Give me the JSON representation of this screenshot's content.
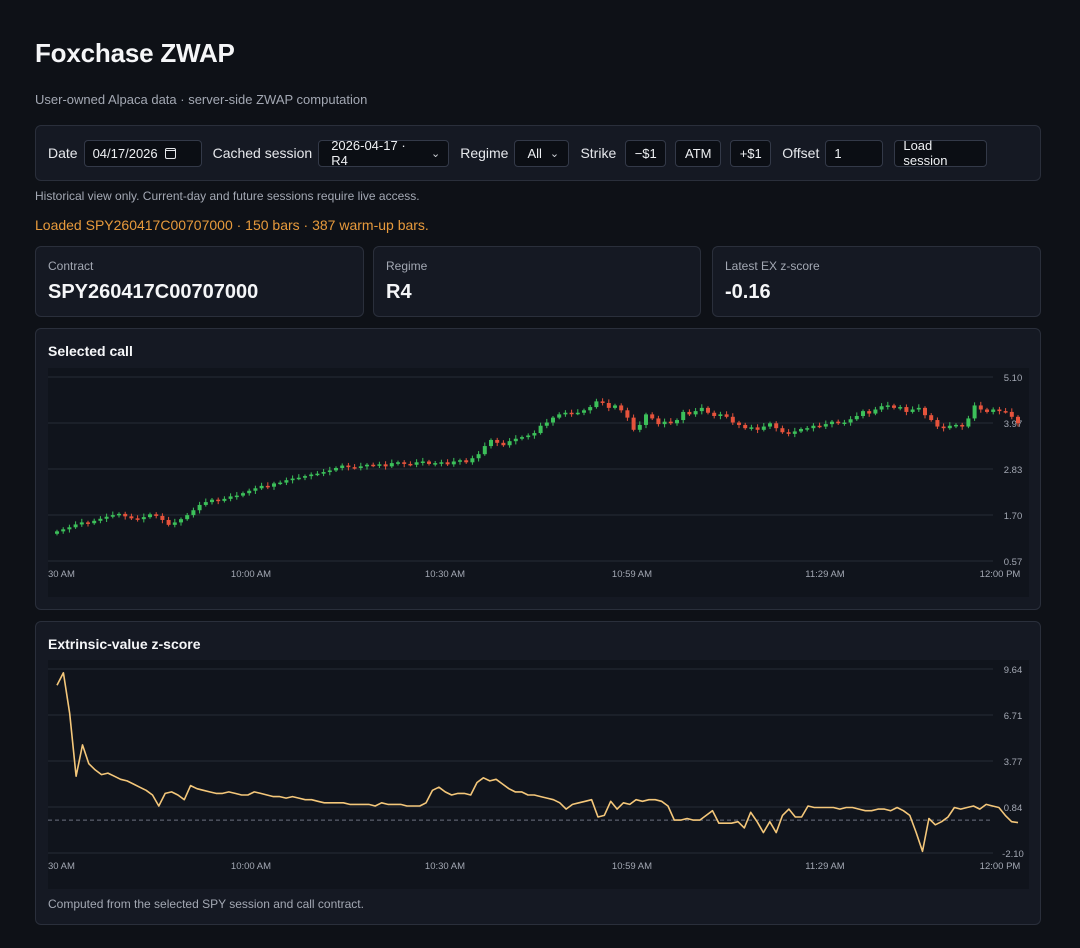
{
  "header": {
    "title": "Foxchase ZWAP",
    "subtitle": "User-owned Alpaca data · server-side ZWAP computation"
  },
  "toolbar": {
    "date_label": "Date",
    "date_value": "04/17/2026",
    "cached_label": "Cached session",
    "cached_value": "2026-04-17 · R4",
    "regime_label": "Regime",
    "regime_value": "All",
    "strike_label": "Strike",
    "strike_minus": "−$1",
    "strike_atm": "ATM",
    "strike_plus": "+$1",
    "offset_label": "Offset",
    "offset_value": "1",
    "load_button": "Load session"
  },
  "hint": "Historical view only. Current-day and future sessions require live access.",
  "status": "Loaded SPY260417C00707000 · 150 bars · 387 warm-up bars.",
  "cards": [
    {
      "label": "Contract",
      "value": "SPY260417C00707000"
    },
    {
      "label": "Regime",
      "value": "R4"
    },
    {
      "label": "Latest EX z-score",
      "value": "-0.16"
    }
  ],
  "colors": {
    "up": "#3cc05a",
    "down": "#e5533c",
    "line": "#f4c77a"
  },
  "chart_data": [
    {
      "type": "candlestick",
      "title": "Selected call",
      "x_ticks": [
        "30 AM",
        "10:00 AM",
        "10:30 AM",
        "10:59 AM",
        "11:29 AM",
        "12:00 PM"
      ],
      "y_ticks": [
        "5.10",
        "3.97",
        "2.83",
        "1.70",
        "0.57"
      ],
      "ylim": [
        0.57,
        5.1
      ],
      "bars": 150,
      "close": [
        1.3,
        1.35,
        1.4,
        1.47,
        1.52,
        1.5,
        1.56,
        1.61,
        1.66,
        1.7,
        1.73,
        1.67,
        1.62,
        1.6,
        1.65,
        1.72,
        1.68,
        1.58,
        1.46,
        1.52,
        1.6,
        1.7,
        1.82,
        1.95,
        2.02,
        2.08,
        2.05,
        2.1,
        2.16,
        2.18,
        2.24,
        2.3,
        2.36,
        2.42,
        2.4,
        2.48,
        2.5,
        2.56,
        2.6,
        2.62,
        2.66,
        2.7,
        2.72,
        2.76,
        2.8,
        2.86,
        2.92,
        2.88,
        2.86,
        2.9,
        2.94,
        2.92,
        2.95,
        2.9,
        2.98,
        3.0,
        2.96,
        2.94,
        3.0,
        3.02,
        2.96,
        2.98,
        3.0,
        2.95,
        3.02,
        3.05,
        3.0,
        3.1,
        3.2,
        3.4,
        3.55,
        3.48,
        3.42,
        3.52,
        3.58,
        3.62,
        3.66,
        3.72,
        3.9,
        3.98,
        4.1,
        4.18,
        4.22,
        4.2,
        4.22,
        4.28,
        4.36,
        4.5,
        4.46,
        4.34,
        4.4,
        4.28,
        4.1,
        3.8,
        3.92,
        4.18,
        4.08,
        3.94,
        4.0,
        3.96,
        4.04,
        4.24,
        4.18,
        4.26,
        4.34,
        4.22,
        4.14,
        4.18,
        4.12,
        3.98,
        3.92,
        3.84,
        3.86,
        3.8,
        3.88,
        3.96,
        3.84,
        3.74,
        3.7,
        3.76,
        3.82,
        3.84,
        3.9,
        3.88,
        3.94,
        4.0,
        3.96,
        3.98,
        4.06,
        4.14,
        4.26,
        4.2,
        4.3,
        4.38,
        4.4,
        4.34,
        4.36,
        4.24,
        4.3,
        4.34,
        4.16,
        4.04,
        3.88,
        3.84,
        3.9,
        3.92,
        3.88,
        4.08,
        4.4,
        4.3,
        4.24,
        4.3,
        4.26,
        4.24,
        4.12,
        3.96
      ]
    },
    {
      "type": "line",
      "title": "Extrinsic-value z-score",
      "x_ticks": [
        "30 AM",
        "10:00 AM",
        "10:30 AM",
        "10:59 AM",
        "11:29 AM",
        "12:00 PM"
      ],
      "y_ticks": [
        "9.64",
        "6.71",
        "3.77",
        "0.84",
        "-2.10"
      ],
      "ylim": [
        -2.1,
        9.64
      ],
      "baseline": 0,
      "values": [
        8.6,
        9.4,
        6.8,
        2.8,
        4.8,
        3.6,
        3.2,
        2.9,
        3.0,
        2.8,
        2.6,
        2.5,
        2.3,
        2.1,
        1.9,
        1.6,
        0.9,
        1.7,
        1.8,
        1.6,
        1.3,
        2.2,
        2.0,
        1.9,
        1.8,
        1.7,
        1.7,
        1.8,
        1.7,
        1.6,
        1.6,
        1.8,
        1.7,
        1.6,
        1.5,
        1.5,
        1.4,
        1.5,
        1.4,
        1.3,
        1.3,
        1.2,
        1.1,
        1.1,
        1.1,
        1.1,
        1.0,
        1.0,
        1.0,
        1.0,
        0.9,
        1.1,
        1.0,
        1.0,
        1.0,
        0.9,
        0.9,
        0.9,
        1.1,
        1.9,
        2.1,
        1.8,
        1.6,
        1.7,
        1.7,
        1.6,
        2.4,
        2.7,
        2.5,
        2.6,
        2.3,
        2.0,
        1.8,
        1.8,
        1.6,
        1.6,
        1.5,
        1.4,
        1.3,
        1.1,
        0.7,
        1.0,
        1.1,
        1.2,
        1.3,
        0.2,
        0.3,
        1.2,
        0.7,
        1.1,
        1.0,
        1.3,
        1.2,
        1.3,
        1.3,
        1.2,
        0.9,
        0.0,
        0.0,
        0.1,
        0.0,
        0.0,
        0.3,
        0.6,
        -0.2,
        -0.2,
        -0.2,
        -0.1,
        -0.5,
        0.5,
        -0.1,
        -0.8,
        -0.1,
        -0.8,
        0.3,
        0.7,
        0.2,
        0.2,
        0.9,
        0.8,
        0.8,
        0.8,
        0.8,
        0.7,
        0.8,
        0.8,
        0.7,
        0.6,
        0.6,
        0.7,
        0.7,
        0.6,
        0.8,
        0.6,
        0.3,
        -0.8,
        -2.0,
        0.1,
        -0.3,
        -0.1,
        0.2,
        0.8,
        0.7,
        0.8,
        0.9,
        0.7,
        1.0,
        0.9,
        0.8,
        0.3,
        -0.1,
        -0.16
      ]
    }
  ],
  "footer": "Computed from the selected SPY session and call contract."
}
